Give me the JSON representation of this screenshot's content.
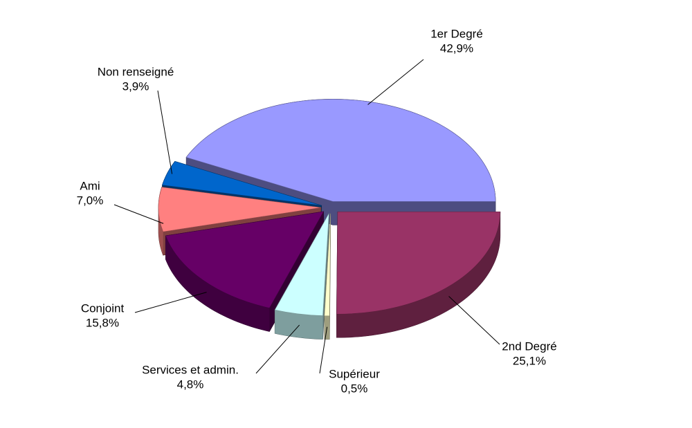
{
  "chart_data": {
    "type": "pie",
    "categories": [
      "1er Degré",
      "2nd Degré",
      "Supérieur",
      "Services et admin.",
      "Conjoint",
      "Ami",
      "Non renseigné"
    ],
    "values": [
      42.9,
      25.1,
      0.5,
      4.8,
      15.8,
      7.0,
      3.9
    ],
    "value_labels": [
      "42,9%",
      "25,1%",
      "0,5%",
      "4,8%",
      "15,8%",
      "7,0%",
      "3,9%"
    ],
    "colors": [
      "#9999ff",
      "#993366",
      "#ffffcc",
      "#ccffff",
      "#660066",
      "#ff8080",
      "#0066cc"
    ]
  }
}
